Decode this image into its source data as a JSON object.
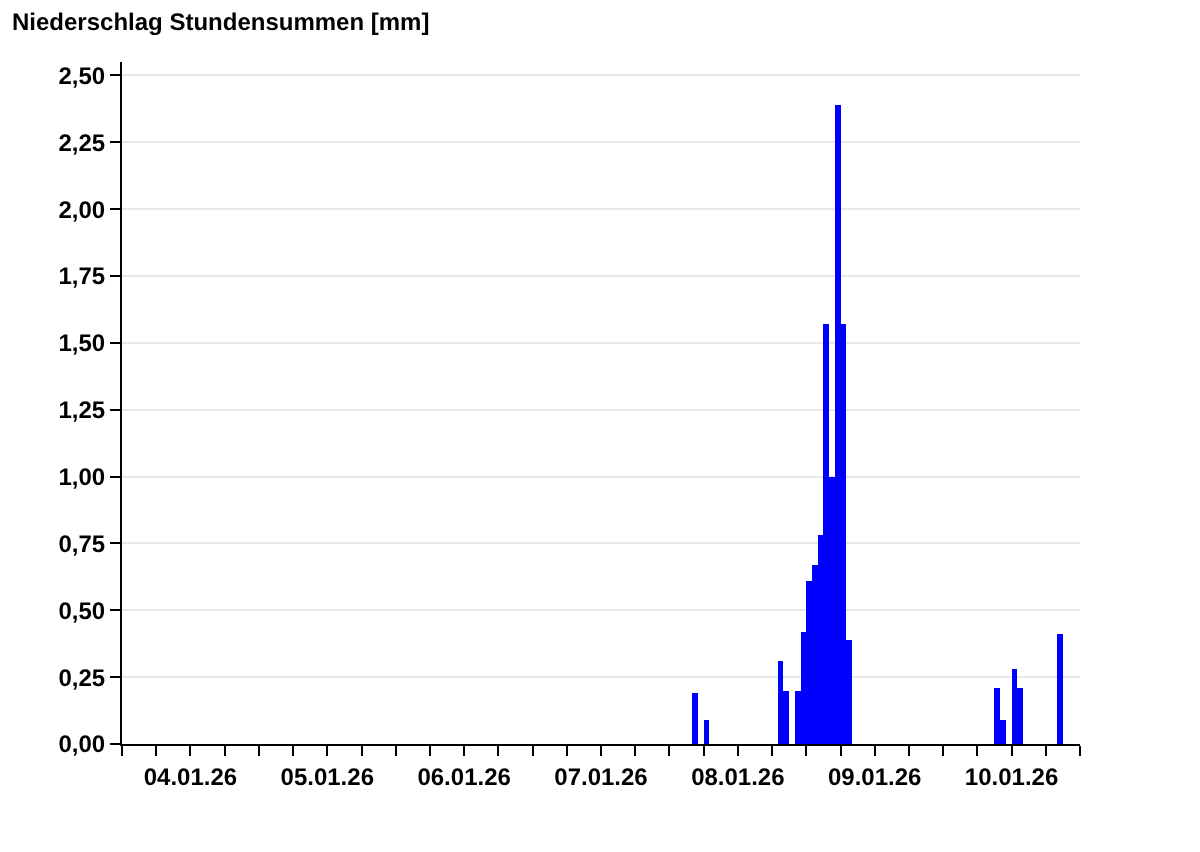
{
  "chart_data": {
    "type": "bar",
    "title": "Niederschlag Stundensummen [mm]",
    "x": [
      "--01-08T04:00",
      "--01-08T06:00",
      "--01-08T19:00",
      "--01-08T20:00",
      "--01-08T22:00",
      "--01-08T23:00",
      "--01-09T00:00",
      "--01-09T01:00",
      "--01-09T02:00",
      "--01-09T03:00",
      "--01-09T04:00",
      "--01-09T05:00",
      "--01-09T06:00",
      "--01-09T07:00",
      "--01-10T09:00",
      "--01-10T10:00",
      "--01-10T12:00",
      "--01-10T13:00",
      "--01-10T20:00"
    ],
    "values": [
      0.19,
      0.09,
      0.31,
      0.2,
      0.2,
      0.42,
      0.61,
      0.67,
      0.78,
      1.57,
      1.0,
      2.39,
      1.57,
      0.39,
      0.21,
      0.09,
      0.28,
      0.21,
      0.41
    ],
    "color": "#0000ff",
    "xlim": [
      "--01-04T00:00",
      "--01-11T00:00"
    ],
    "xticks": [
      {
        "value": "--01-04T00:00",
        "label": null
      },
      {
        "value": "--01-04T06:00",
        "label": null
      },
      {
        "value": "--01-04T12:00",
        "label": "04.01.26"
      },
      {
        "value": "--01-04T18:00",
        "label": null
      },
      {
        "value": "--01-05T00:00",
        "label": null
      },
      {
        "value": "--01-05T06:00",
        "label": null
      },
      {
        "value": "--01-05T12:00",
        "label": "05.01.26"
      },
      {
        "value": "--01-05T18:00",
        "label": null
      },
      {
        "value": "--01-06T00:00",
        "label": null
      },
      {
        "value": "--01-06T06:00",
        "label": null
      },
      {
        "value": "--01-06T12:00",
        "label": "06.01.26"
      },
      {
        "value": "--01-06T18:00",
        "label": null
      },
      {
        "value": "--01-07T00:00",
        "label": null
      },
      {
        "value": "--01-07T06:00",
        "label": null
      },
      {
        "value": "--01-07T12:00",
        "label": "07.01.26"
      },
      {
        "value": "--01-07T18:00",
        "label": null
      },
      {
        "value": "--01-08T00:00",
        "label": null
      },
      {
        "value": "--01-08T06:00",
        "label": null
      },
      {
        "value": "--01-08T12:00",
        "label": "08.01.26"
      },
      {
        "value": "--01-08T18:00",
        "label": null
      },
      {
        "value": "--01-09T00:00",
        "label": null
      },
      {
        "value": "--01-09T06:00",
        "label": null
      },
      {
        "value": "--01-09T12:00",
        "label": "09.01.26"
      },
      {
        "value": "--01-09T18:00",
        "label": null
      },
      {
        "value": "--01-10T00:00",
        "label": null
      },
      {
        "value": "--01-10T06:00",
        "label": null
      },
      {
        "value": "--01-10T12:00",
        "label": "10.01.26"
      },
      {
        "value": "--01-10T18:00",
        "label": null
      },
      {
        "value": "--01-11T00:00",
        "label": null
      }
    ],
    "ylim": [
      0,
      2.55
    ],
    "yticks": [
      {
        "value": 0,
        "label": "0,00"
      },
      {
        "value": 0.25,
        "label": "0,25"
      },
      {
        "value": 0.5,
        "label": "0,50"
      },
      {
        "value": 0.75,
        "label": "0,75"
      },
      {
        "value": 1,
        "label": "1,00"
      },
      {
        "value": 1.25,
        "label": "1,25"
      },
      {
        "value": 1.5,
        "label": "1,50"
      },
      {
        "value": 1.75,
        "label": "1,75"
      },
      {
        "value": 2,
        "label": "2,00"
      },
      {
        "value": 2.25,
        "label": "2,25"
      },
      {
        "value": 2.5,
        "label": "2,50"
      }
    ],
    "grid": "y"
  }
}
